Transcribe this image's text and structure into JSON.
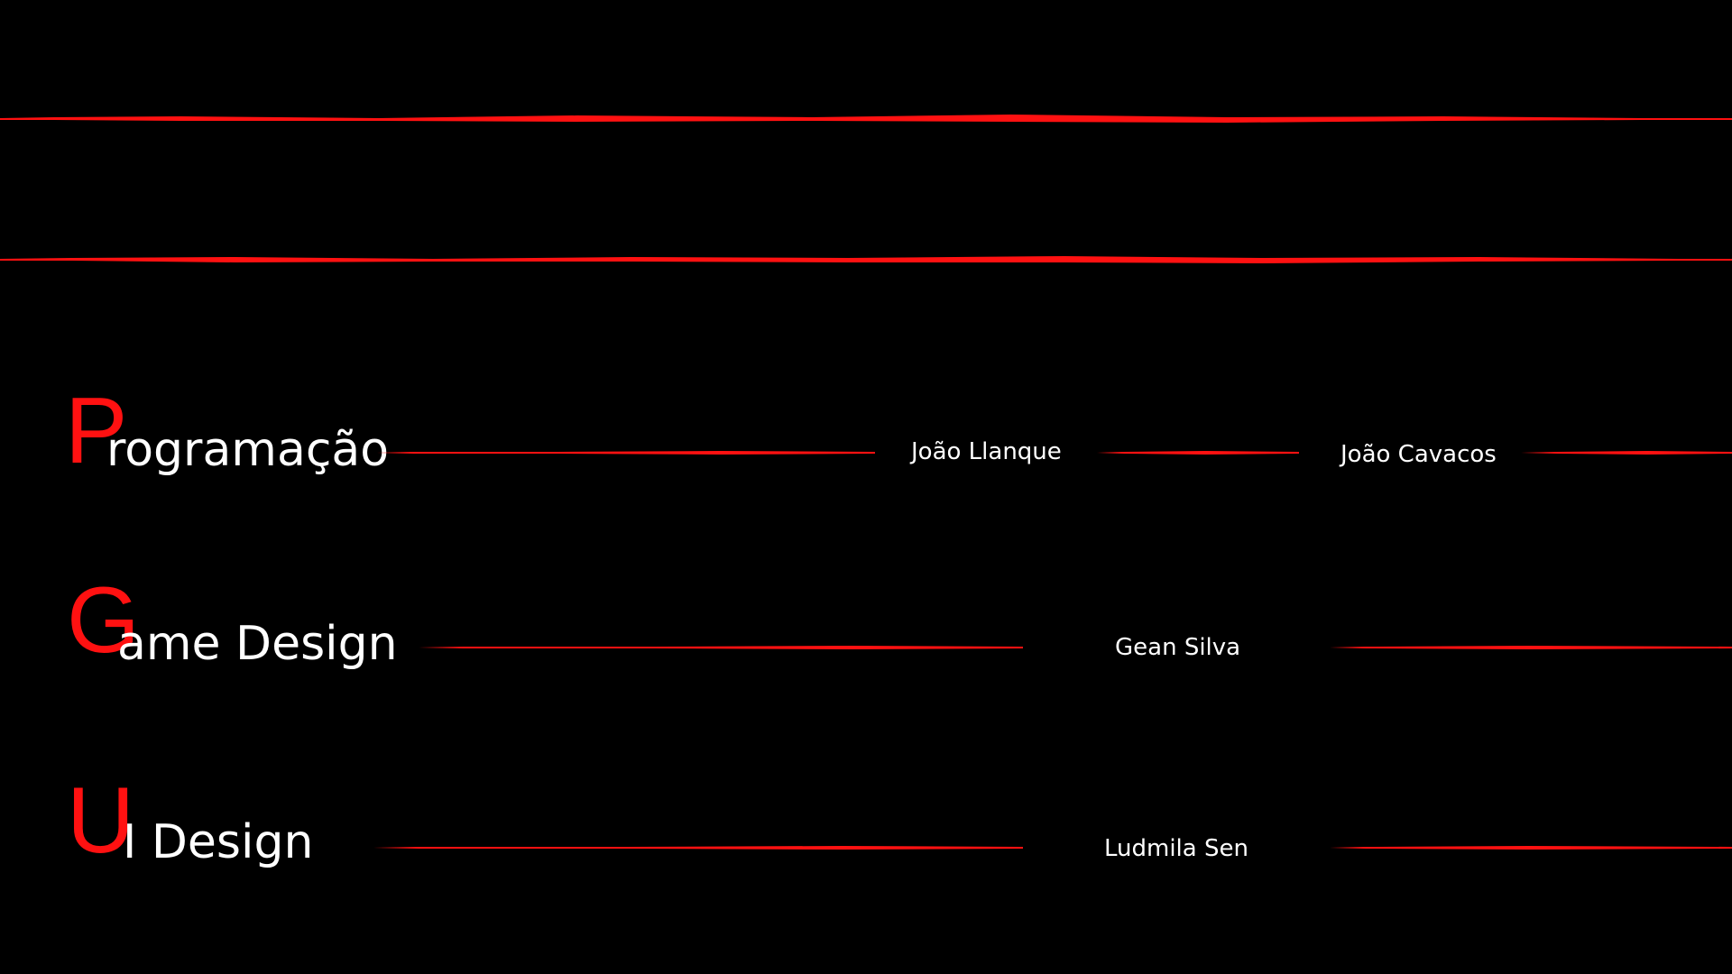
{
  "palette": {
    "background": "#000000",
    "accent": "#ff1111",
    "text": "#ffffff"
  },
  "roles": [
    {
      "initial": "P",
      "rest": "rogramação",
      "members": [
        "João Llanque",
        "João Cavacos"
      ]
    },
    {
      "initial": "G",
      "rest": "ame Design",
      "members": [
        "Gean Silva"
      ]
    },
    {
      "initial": "U",
      "rest": "I Design",
      "members": [
        "Ludmila Sen"
      ]
    }
  ]
}
